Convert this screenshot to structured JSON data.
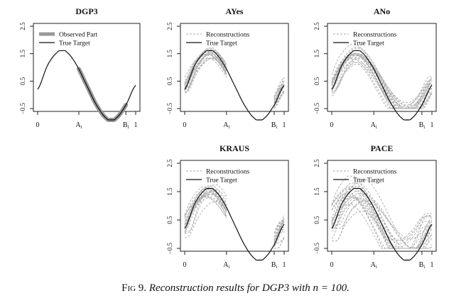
{
  "caption": {
    "label": "Fig 9.",
    "text": "Reconstruction results for DGP3 with n = 100."
  },
  "colors": {
    "true_target": "#111111",
    "observed": "#999999",
    "reconstruction": "#aaaaaa"
  },
  "chart_data": [
    {
      "type": "line",
      "title": "DGP3",
      "panel": "top-left",
      "xlim": [
        0,
        1
      ],
      "ylim": [
        -0.5,
        2.5
      ],
      "xticks": [
        {
          "v": 0,
          "label": "0"
        },
        {
          "v": 0.42,
          "label": "A",
          "sub": "i"
        },
        {
          "v": 0.9,
          "label": "B",
          "sub": "i"
        },
        {
          "v": 1,
          "label": "1"
        }
      ],
      "yticks": [
        {
          "v": -0.5,
          "label": "−0.5"
        },
        {
          "v": 0.5,
          "label": "0.5"
        },
        {
          "v": 1.5,
          "label": "1.5"
        },
        {
          "v": 2.5,
          "label": "2.5"
        }
      ],
      "legend": [
        {
          "name": "Observed Part",
          "style": "observed"
        },
        {
          "name": "True Target",
          "style": "true"
        }
      ],
      "observed_range": [
        0.42,
        0.9
      ],
      "true_target": {
        "x": [
          0,
          0.1,
          0.2,
          0.25,
          0.3,
          0.4,
          0.5,
          0.6,
          0.7,
          0.75,
          0.8,
          0.9,
          1
        ],
        "y": [
          0.2,
          1.07,
          1.55,
          1.61,
          1.55,
          1.07,
          0.35,
          -0.37,
          -0.85,
          -0.91,
          -0.85,
          -0.37,
          0.35
        ]
      },
      "reconstructions": null
    },
    {
      "type": "line",
      "title": "AYes",
      "panel": "top-middle",
      "xlim": [
        0,
        1
      ],
      "ylim": [
        -0.5,
        2.5
      ],
      "xticks": [
        {
          "v": 0,
          "label": "0"
        },
        {
          "v": 0.42,
          "label": "A",
          "sub": "i"
        },
        {
          "v": 0.9,
          "label": "B",
          "sub": "i"
        },
        {
          "v": 1,
          "label": "1"
        }
      ],
      "yticks": [
        {
          "v": -0.5,
          "label": "−0.5"
        },
        {
          "v": 0.5,
          "label": "0.5"
        },
        {
          "v": 1.5,
          "label": "1.5"
        },
        {
          "v": 2.5,
          "label": "2.5"
        }
      ],
      "legend": [
        {
          "name": "Reconstructions",
          "style": "recon"
        },
        {
          "name": "True Target",
          "style": "true"
        }
      ],
      "observed_range": null,
      "true_target": {
        "x": [
          0,
          0.1,
          0.2,
          0.25,
          0.3,
          0.4,
          0.5,
          0.6,
          0.7,
          0.75,
          0.8,
          0.9,
          1
        ],
        "y": [
          0.2,
          1.07,
          1.55,
          1.61,
          1.55,
          1.07,
          0.35,
          -0.37,
          -0.85,
          -0.91,
          -0.85,
          -0.37,
          0.35
        ]
      },
      "reconstructions": {
        "count": 20,
        "ranges": [
          [
            0,
            0.42
          ],
          [
            0.9,
            1
          ]
        ],
        "amp_spread": 0.2,
        "phase_spread": 0.04,
        "offset_spread": 0.18,
        "edge_fan": 0.55
      }
    },
    {
      "type": "line",
      "title": "ANo",
      "panel": "top-right",
      "xlim": [
        0,
        1
      ],
      "ylim": [
        -0.5,
        2.5
      ],
      "xticks": [
        {
          "v": 0,
          "label": "0"
        },
        {
          "v": 0.42,
          "label": "A",
          "sub": "i"
        },
        {
          "v": 0.9,
          "label": "B",
          "sub": "i"
        },
        {
          "v": 1,
          "label": "1"
        }
      ],
      "yticks": [
        {
          "v": -0.5,
          "label": "−0.5"
        },
        {
          "v": 0.5,
          "label": "0.5"
        },
        {
          "v": 1.5,
          "label": "1.5"
        },
        {
          "v": 2.5,
          "label": "2.5"
        }
      ],
      "legend": [
        {
          "name": "Reconstructions",
          "style": "recon"
        },
        {
          "name": "True Target",
          "style": "true"
        }
      ],
      "observed_range": null,
      "true_target": {
        "x": [
          0,
          0.1,
          0.2,
          0.25,
          0.3,
          0.4,
          0.5,
          0.6,
          0.7,
          0.75,
          0.8,
          0.9,
          1
        ],
        "y": [
          0.2,
          1.07,
          1.55,
          1.61,
          1.55,
          1.07,
          0.35,
          -0.37,
          -0.85,
          -0.91,
          -0.85,
          -0.37,
          0.35
        ]
      },
      "reconstructions": {
        "count": 20,
        "ranges": [
          [
            0,
            1
          ]
        ],
        "amp_spread": 0.22,
        "phase_spread": 0.05,
        "offset_spread": 0.2,
        "edge_fan": 0.5
      }
    },
    {
      "type": "line",
      "title": "KRAUS",
      "panel": "bottom-middle",
      "xlim": [
        0,
        1
      ],
      "ylim": [
        -0.5,
        2.5
      ],
      "xticks": [
        {
          "v": 0,
          "label": "0"
        },
        {
          "v": 0.42,
          "label": "A",
          "sub": "i"
        },
        {
          "v": 0.9,
          "label": "B",
          "sub": "i"
        },
        {
          "v": 1,
          "label": "1"
        }
      ],
      "yticks": [
        {
          "v": -0.5,
          "label": "−0.5"
        },
        {
          "v": 0.5,
          "label": "0.5"
        },
        {
          "v": 1.5,
          "label": "1.5"
        },
        {
          "v": 2.5,
          "label": "2.5"
        }
      ],
      "legend": [
        {
          "name": "Reconstructions",
          "style": "recon"
        },
        {
          "name": "True Target",
          "style": "true"
        }
      ],
      "observed_range": null,
      "true_target": {
        "x": [
          0,
          0.1,
          0.2,
          0.25,
          0.3,
          0.4,
          0.5,
          0.6,
          0.7,
          0.75,
          0.8,
          0.9,
          1
        ],
        "y": [
          0.2,
          1.07,
          1.55,
          1.61,
          1.55,
          1.07,
          0.35,
          -0.37,
          -0.85,
          -0.91,
          -0.85,
          -0.37,
          0.35
        ]
      },
      "reconstructions": {
        "count": 20,
        "ranges": [
          [
            0,
            0.42
          ],
          [
            0.9,
            1
          ]
        ],
        "amp_spread": 0.25,
        "phase_spread": 0.05,
        "offset_spread": 0.22,
        "edge_fan": 0.7
      }
    },
    {
      "type": "line",
      "title": "PACE",
      "panel": "bottom-right",
      "xlim": [
        0,
        1
      ],
      "ylim": [
        -0.5,
        2.5
      ],
      "xticks": [
        {
          "v": 0,
          "label": "0"
        },
        {
          "v": 0.42,
          "label": "A",
          "sub": "i"
        },
        {
          "v": 0.9,
          "label": "B",
          "sub": "i"
        },
        {
          "v": 1,
          "label": "1"
        }
      ],
      "yticks": [
        {
          "v": -0.5,
          "label": "−0.5"
        },
        {
          "v": 0.5,
          "label": "0.5"
        },
        {
          "v": 1.5,
          "label": "1.5"
        },
        {
          "v": 2.5,
          "label": "2.5"
        }
      ],
      "legend": [
        {
          "name": "Reconstructions",
          "style": "recon"
        },
        {
          "name": "True Target",
          "style": "true"
        }
      ],
      "observed_range": null,
      "true_target": {
        "x": [
          0,
          0.1,
          0.2,
          0.25,
          0.3,
          0.4,
          0.5,
          0.6,
          0.7,
          0.75,
          0.8,
          0.9,
          1
        ],
        "y": [
          0.2,
          1.07,
          1.55,
          1.61,
          1.55,
          1.07,
          0.35,
          -0.37,
          -0.85,
          -0.91,
          -0.85,
          -0.37,
          0.35
        ]
      },
      "reconstructions": {
        "count": 22,
        "ranges": [
          [
            0,
            1
          ]
        ],
        "amp_spread": 0.3,
        "phase_spread": 0.1,
        "offset_spread": 0.35,
        "edge_fan": 0.6
      }
    }
  ]
}
